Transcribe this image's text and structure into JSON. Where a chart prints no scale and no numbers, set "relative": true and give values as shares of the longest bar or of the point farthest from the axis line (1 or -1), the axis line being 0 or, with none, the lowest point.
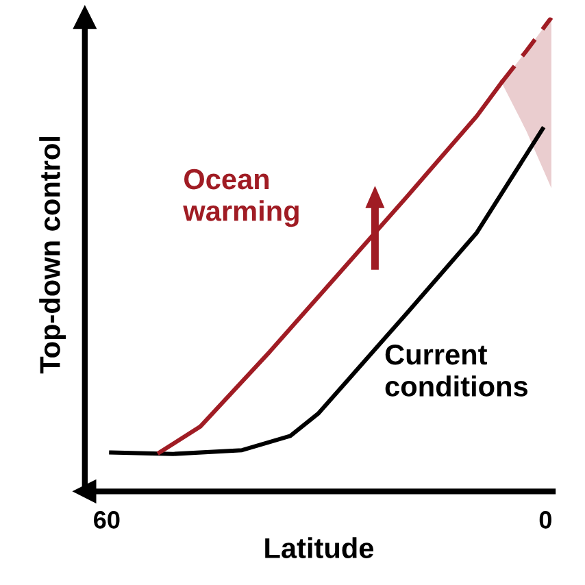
{
  "chart_data": {
    "type": "line",
    "relative": true,
    "xlabel": "Latitude",
    "ylabel": "Top-down control",
    "xlim": [
      63,
      -1
    ],
    "xticks": [
      60,
      0
    ],
    "legend": false,
    "grid": false,
    "marker": "none",
    "series": [
      {
        "name": "Current conditions",
        "color": "#000000",
        "line_style": "solid",
        "x": [
          59.4,
          50.9,
          41.5,
          34.9,
          31.1,
          18.9,
          9.4,
          0.4
        ],
        "values": [
          0.082,
          0.079,
          0.087,
          0.117,
          0.164,
          0.377,
          0.546,
          0.765
        ]
      },
      {
        "name": "Ocean warming",
        "color": "#a01c24",
        "line_style": "solid",
        "x": [
          52.8,
          47.2,
          37.7,
          18.9,
          9.4,
          6.0
        ],
        "values": [
          0.082,
          0.137,
          0.295,
          0.623,
          0.792,
          0.863
        ]
      },
      {
        "color": "#a01c24",
        "line_style": "dashed",
        "x": [
          6.0,
          2.6,
          -0.8
        ],
        "values": [
          0.863,
          0.93,
          1.0
        ],
        "lower": [
          0.863,
          0.76,
          0.64
        ],
        "upper": [
          0.863,
          0.93,
          1.0
        ]
      }
    ]
  }
}
